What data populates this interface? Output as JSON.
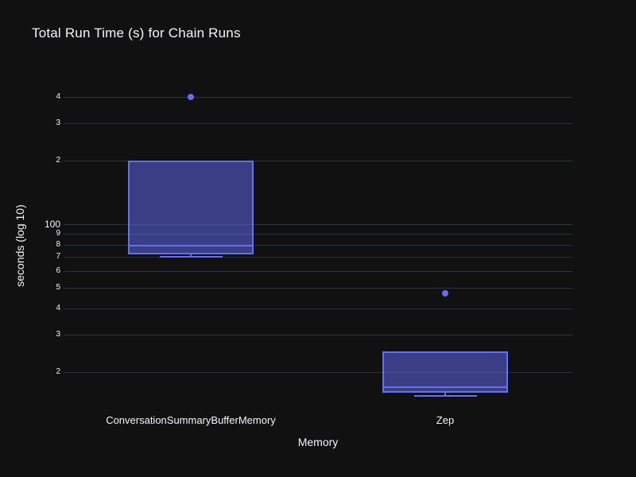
{
  "chart_data": {
    "type": "box",
    "title": "Total Run Time (s) for Chain Runs",
    "xlabel": "Memory",
    "ylabel": "seconds (log 10)",
    "yscale": "log10",
    "grid": true,
    "legend": false,
    "ylim": [
      13.9,
      529
    ],
    "categories": [
      "ConversationSummaryBufferMemory",
      "Zep"
    ],
    "series": [
      {
        "name": "ConversationSummaryBufferMemory",
        "min": 70,
        "q1": 72,
        "median": 79,
        "q3": 200,
        "max": 200,
        "outliers": [
          400
        ]
      },
      {
        "name": "Zep",
        "min": 15.4,
        "q1": 16,
        "median": 17,
        "q3": 25,
        "max": 25,
        "outliers": [
          47
        ]
      }
    ],
    "y_ticks": [
      {
        "value": 400,
        "label": "4",
        "major": false
      },
      {
        "value": 300,
        "label": "3",
        "major": false
      },
      {
        "value": 200,
        "label": "2",
        "major": false
      },
      {
        "value": 100,
        "label": "100",
        "major": true
      },
      {
        "value": 90,
        "label": "9",
        "major": false
      },
      {
        "value": 80,
        "label": "8",
        "major": false
      },
      {
        "value": 70,
        "label": "7",
        "major": false
      },
      {
        "value": 60,
        "label": "6",
        "major": false
      },
      {
        "value": 50,
        "label": "5",
        "major": false
      },
      {
        "value": 40,
        "label": "4",
        "major": false
      },
      {
        "value": 30,
        "label": "3",
        "major": false
      },
      {
        "value": 20,
        "label": "2",
        "major": false
      }
    ]
  },
  "theme": {
    "background": "#111111",
    "grid_color": "#283442",
    "text_color": "#f2f5fa",
    "accent_color": "#636efa",
    "box_fill": "rgba(99,110,250,0.5)"
  }
}
